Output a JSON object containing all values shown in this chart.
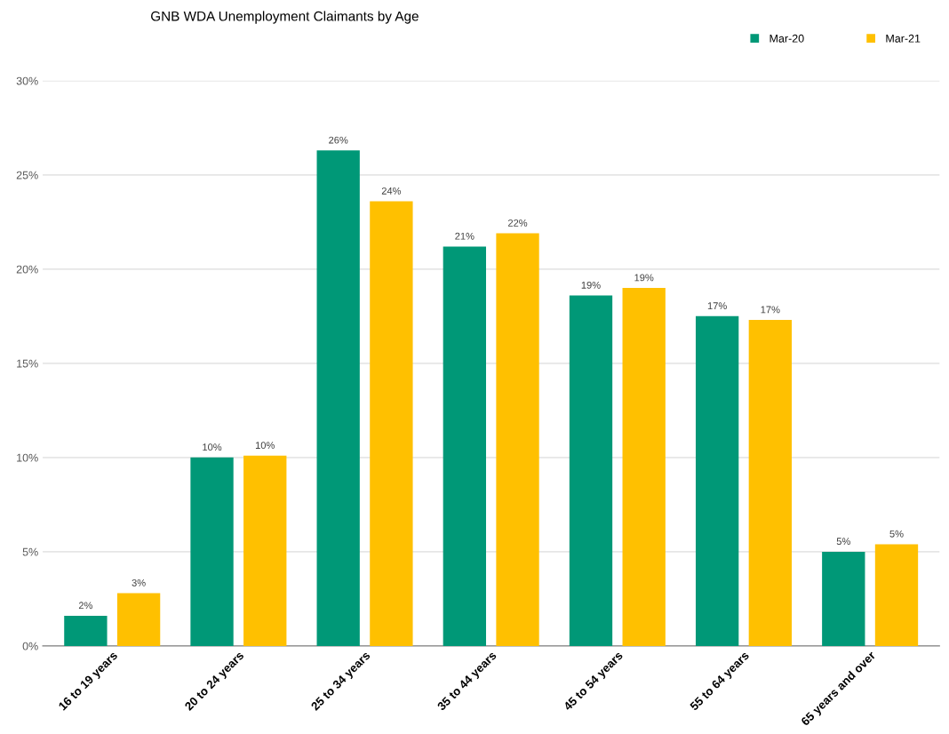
{
  "chart_data": {
    "type": "bar",
    "title": "GNB WDA Unemployment Claimants by Age",
    "categories": [
      "16 to 19 years",
      "20 to 24 years",
      "25 to 34 years",
      "35 to 44 years",
      "45 to 54 years",
      "55 to 64 years",
      "65 years and over"
    ],
    "series": [
      {
        "name": "Mar-20",
        "color": "#009877",
        "values": [
          1.6,
          10.0,
          26.3,
          21.2,
          18.6,
          17.5,
          5.0
        ],
        "value_labels": [
          "2%",
          "10%",
          "26%",
          "21%",
          "19%",
          "17%",
          "5%"
        ]
      },
      {
        "name": "Mar-21",
        "color": "#ffc000",
        "values": [
          2.8,
          10.1,
          23.6,
          21.9,
          19.0,
          17.3,
          5.4
        ],
        "value_labels": [
          "3%",
          "10%",
          "24%",
          "22%",
          "19%",
          "17%",
          "5%"
        ]
      }
    ],
    "ylim": [
      0,
      30
    ],
    "yticks": [
      {
        "value": 0,
        "label": "0%"
      },
      {
        "value": 5,
        "label": "5%"
      },
      {
        "value": 10,
        "label": "10%"
      },
      {
        "value": 15,
        "label": "15%"
      },
      {
        "value": 20,
        "label": "20%"
      },
      {
        "value": 25,
        "label": "25%"
      },
      {
        "value": 30,
        "label": "30%"
      }
    ],
    "grid": "y",
    "legend": "top right"
  }
}
